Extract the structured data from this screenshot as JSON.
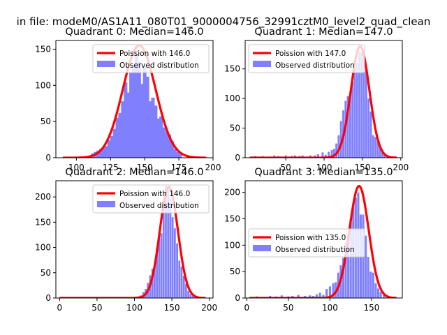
{
  "figure": {
    "suptitle": "in file: modeM0/AS1A11_080T01_9000004756_32991cztM0_level2_quad_clean"
  },
  "colors": {
    "curve": "#ff0000",
    "bars": "#8080ff",
    "text": "#000000"
  },
  "chart_data": [
    {
      "type": "bar",
      "title": "Quadrant 0: Median=146.0",
      "xlim": [
        85,
        200
      ],
      "ylim": [
        0,
        162
      ],
      "xticks": [
        100,
        125,
        150,
        175,
        200
      ],
      "yticks": [
        0,
        50,
        100,
        150
      ],
      "mean": 146.0,
      "curve_peak": 155,
      "curve_x": [
        90,
        195
      ],
      "legend": {
        "position": "top-right",
        "curve_label": "Poission with 146.0",
        "bars_label": "Observed distribution"
      },
      "bins": [
        [
          110,
          3
        ],
        [
          112,
          6
        ],
        [
          114,
          8
        ],
        [
          116,
          10
        ],
        [
          118,
          12
        ],
        [
          120,
          14
        ],
        [
          122,
          16
        ],
        [
          124,
          24
        ],
        [
          126,
          30
        ],
        [
          128,
          40
        ],
        [
          130,
          55
        ],
        [
          132,
          62
        ],
        [
          134,
          78
        ],
        [
          136,
          104
        ],
        [
          138,
          90
        ],
        [
          140,
          118
        ],
        [
          142,
          128
        ],
        [
          144,
          143
        ],
        [
          146,
          132
        ],
        [
          148,
          102
        ],
        [
          150,
          126
        ],
        [
          152,
          112
        ],
        [
          154,
          78
        ],
        [
          156,
          83
        ],
        [
          158,
          72
        ],
        [
          160,
          54
        ],
        [
          162,
          57
        ],
        [
          164,
          42
        ],
        [
          166,
          36
        ],
        [
          168,
          32
        ],
        [
          170,
          23
        ],
        [
          172,
          12
        ],
        [
          174,
          8
        ],
        [
          176,
          5
        ]
      ]
    },
    {
      "type": "bar",
      "title": "Quadrant 1: Median=147.0",
      "xlim": [
        -3,
        202
      ],
      "ylim": [
        0,
        198
      ],
      "xticks": [
        50,
        100,
        150,
        200
      ],
      "yticks": [
        0,
        50,
        100,
        150
      ],
      "mean": 147.0,
      "curve_peak": 188,
      "curve_x": [
        3,
        195
      ],
      "legend": {
        "position": "top-left",
        "curve_label": "Poission with 147.0",
        "bars_label": "Observed distribution"
      },
      "bins": [
        [
          5,
          2
        ],
        [
          10,
          3
        ],
        [
          15,
          2
        ],
        [
          20,
          3
        ],
        [
          30,
          2
        ],
        [
          35,
          4
        ],
        [
          40,
          3
        ],
        [
          45,
          2
        ],
        [
          50,
          4
        ],
        [
          58,
          3
        ],
        [
          62,
          4
        ],
        [
          68,
          3
        ],
        [
          72,
          4
        ],
        [
          78,
          2
        ],
        [
          82,
          4
        ],
        [
          88,
          4
        ],
        [
          92,
          6
        ],
        [
          98,
          9
        ],
        [
          102,
          5
        ],
        [
          106,
          10
        ],
        [
          110,
          13
        ],
        [
          113,
          15
        ],
        [
          116,
          24
        ],
        [
          119,
          38
        ],
        [
          122,
          62
        ],
        [
          125,
          80
        ],
        [
          128,
          96
        ],
        [
          131,
          104
        ],
        [
          134,
          110
        ],
        [
          137,
          128
        ],
        [
          140,
          150
        ],
        [
          143,
          160
        ],
        [
          146,
          180
        ],
        [
          149,
          178
        ],
        [
          152,
          168
        ],
        [
          155,
          150
        ],
        [
          158,
          100
        ],
        [
          161,
          78
        ],
        [
          164,
          38
        ],
        [
          167,
          35
        ],
        [
          170,
          28
        ],
        [
          173,
          18
        ],
        [
          176,
          14
        ],
        [
          179,
          7
        ],
        [
          183,
          4
        ]
      ]
    },
    {
      "type": "bar",
      "title": "Quadrant 2: Median=146.0",
      "xlim": [
        -5,
        205
      ],
      "ylim": [
        0,
        232
      ],
      "xticks": [
        0,
        50,
        100,
        150,
        200
      ],
      "yticks": [
        0,
        50,
        100,
        150,
        200
      ],
      "mean": 146.0,
      "curve_peak": 220,
      "curve_x": [
        0,
        195
      ],
      "legend": {
        "position": "top-right",
        "curve_label": "Poission with 146.0",
        "bars_label": "Observed distribution"
      },
      "bins": [
        [
          104,
          3
        ],
        [
          108,
          5
        ],
        [
          112,
          12
        ],
        [
          115,
          18
        ],
        [
          118,
          30
        ],
        [
          121,
          45
        ],
        [
          124,
          58
        ],
        [
          127,
          62
        ],
        [
          130,
          98
        ],
        [
          133,
          118
        ],
        [
          136,
          128
        ],
        [
          139,
          192
        ],
        [
          142,
          222
        ],
        [
          145,
          218
        ],
        [
          148,
          198
        ],
        [
          151,
          160
        ],
        [
          154,
          138
        ],
        [
          157,
          108
        ],
        [
          160,
          74
        ],
        [
          163,
          62
        ],
        [
          166,
          44
        ],
        [
          169,
          28
        ],
        [
          172,
          14
        ],
        [
          175,
          8
        ],
        [
          178,
          4
        ]
      ]
    },
    {
      "type": "bar",
      "title": "Quadrant 3: Median=135.0",
      "xlim": [
        -2,
        187
      ],
      "ylim": [
        0,
        222
      ],
      "xticks": [
        0,
        50,
        100,
        150
      ],
      "yticks": [
        0,
        50,
        100,
        150,
        200
      ],
      "mean": 135.0,
      "curve_peak": 212,
      "curve_x": [
        3,
        180
      ],
      "legend": {
        "position": "center-left",
        "curve_label": "Poission with 135.0",
        "bars_label": "Observed distribution"
      },
      "bins": [
        [
          5,
          2
        ],
        [
          12,
          3
        ],
        [
          20,
          2
        ],
        [
          28,
          4
        ],
        [
          35,
          3
        ],
        [
          42,
          5
        ],
        [
          50,
          3
        ],
        [
          55,
          4
        ],
        [
          62,
          6
        ],
        [
          70,
          4
        ],
        [
          76,
          5
        ],
        [
          80,
          4
        ],
        [
          84,
          7
        ],
        [
          88,
          10
        ],
        [
          92,
          6
        ],
        [
          96,
          17
        ],
        [
          100,
          22
        ],
        [
          104,
          28
        ],
        [
          107,
          30
        ],
        [
          110,
          48
        ],
        [
          113,
          62
        ],
        [
          116,
          76
        ],
        [
          119,
          105
        ],
        [
          122,
          118
        ],
        [
          125,
          150
        ],
        [
          128,
          178
        ],
        [
          131,
          190
        ],
        [
          134,
          200
        ],
        [
          137,
          158
        ],
        [
          140,
          158
        ],
        [
          143,
          118
        ],
        [
          146,
          78
        ],
        [
          149,
          50
        ],
        [
          152,
          48
        ],
        [
          155,
          28
        ],
        [
          158,
          18
        ],
        [
          161,
          12
        ],
        [
          165,
          6
        ],
        [
          170,
          3
        ]
      ]
    }
  ]
}
